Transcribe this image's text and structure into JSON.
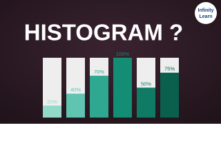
{
  "chart_data": {
    "type": "bar",
    "title": "HISTOGRAM ?",
    "categories": [
      null,
      null,
      null,
      null,
      null,
      null
    ],
    "values": [
      20,
      40,
      70,
      100,
      50,
      75
    ],
    "value_labels": [
      "20%",
      "40%",
      "70%",
      "100%",
      "50%",
      "75%"
    ],
    "colors": [
      "#93d9ca",
      "#5fc5b1",
      "#2ea890",
      "#138d74",
      "#0f7b64",
      "#0b5f4d"
    ],
    "ylim": [
      0,
      100
    ]
  },
  "logo": {
    "line1": "Infinity",
    "line2": "Learn"
  }
}
